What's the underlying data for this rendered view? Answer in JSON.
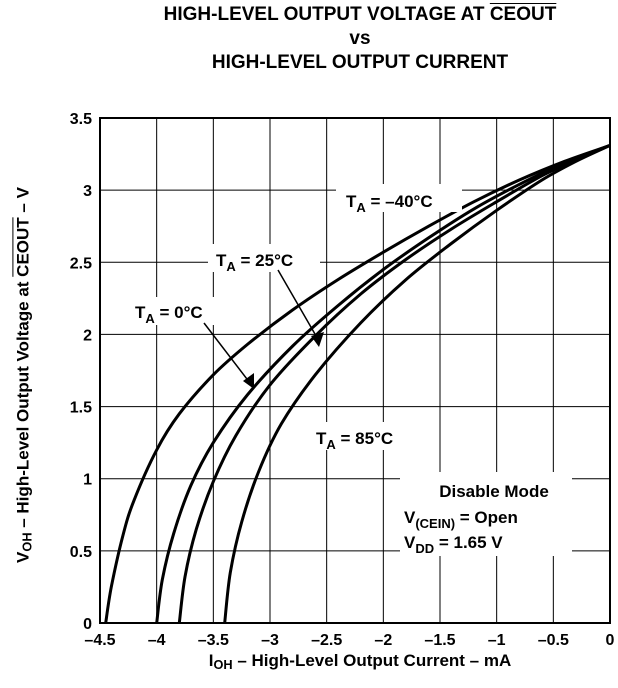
{
  "title": {
    "line1_prefix": "HIGH-LEVEL OUTPUT VOLTAGE AT ",
    "line1_overline": "CEOUT",
    "line2": "vs",
    "line3": "HIGH-LEVEL OUTPUT CURRENT"
  },
  "axis_labels": {
    "x_prefix": "I",
    "x_sub": "OH",
    "x_rest": " – High-Level Output Current – mA",
    "y_prefix": "V",
    "y_sub": "OH",
    "y_mid": " – High-Level Output Voltage at ",
    "y_overline": "CEOUT",
    "y_rest": " – V"
  },
  "series_labels": {
    "neg40": {
      "main": "T",
      "sub": "A",
      "rest": " = –40°C"
    },
    "t25": {
      "main": "T",
      "sub": "A",
      "rest": " = 25°C"
    },
    "t0": {
      "main": "T",
      "sub": "A",
      "rest": " = 0°C"
    },
    "t85": {
      "main": "T",
      "sub": "A",
      "rest": " = 85°C"
    }
  },
  "annotation": {
    "line1": "Disable Mode",
    "line2_main": "V",
    "line2_sub": "(CEIN)",
    "line2_rest": " = Open",
    "line3_main": "V",
    "line3_sub": "DD",
    "line3_rest": " = 1.65 V"
  },
  "chart_data": {
    "type": "line",
    "xlim": [
      -4.5,
      0
    ],
    "ylim": [
      0,
      3.5
    ],
    "x_ticks": [
      -4.5,
      -4,
      -3.5,
      -3,
      -2.5,
      -2,
      -1.5,
      -1,
      -0.5,
      0
    ],
    "x_tick_labels": [
      "–4.5",
      "–4",
      "–3.5",
      "–3",
      "–2.5",
      "–2",
      "–1.5",
      "–1",
      "–0.5",
      "0"
    ],
    "y_ticks": [
      0,
      0.5,
      1,
      1.5,
      2,
      2.5,
      3,
      3.5
    ],
    "y_tick_labels": [
      "0",
      "0.5",
      "1",
      "1.5",
      "2",
      "2.5",
      "3",
      "3.5"
    ],
    "grid": true,
    "series": [
      {
        "name": "TA = –40°C",
        "x": [
          -4.45,
          -4.4,
          -4.3,
          -4.2,
          -4.0,
          -3.8,
          -3.5,
          -3.2,
          -2.8,
          -2.4,
          -2.0,
          -1.6,
          -1.2,
          -0.8,
          -0.4,
          0
        ],
        "y": [
          0,
          0.25,
          0.6,
          0.85,
          1.2,
          1.45,
          1.72,
          1.93,
          2.17,
          2.38,
          2.57,
          2.75,
          2.92,
          3.07,
          3.2,
          3.31
        ]
      },
      {
        "name": "TA = 0°C",
        "x": [
          -4.0,
          -3.95,
          -3.85,
          -3.7,
          -3.5,
          -3.2,
          -2.8,
          -2.4,
          -2.0,
          -1.6,
          -1.2,
          -0.8,
          -0.4,
          0
        ],
        "y": [
          0,
          0.3,
          0.62,
          0.95,
          1.25,
          1.58,
          1.92,
          2.2,
          2.45,
          2.67,
          2.87,
          3.04,
          3.19,
          3.31
        ]
      },
      {
        "name": "TA = 25°C",
        "x": [
          -3.8,
          -3.75,
          -3.65,
          -3.5,
          -3.3,
          -3.0,
          -2.6,
          -2.2,
          -1.8,
          -1.4,
          -1.0,
          -0.6,
          -0.3,
          0
        ],
        "y": [
          0,
          0.32,
          0.65,
          0.98,
          1.3,
          1.65,
          1.99,
          2.28,
          2.52,
          2.73,
          2.92,
          3.1,
          3.21,
          3.31
        ]
      },
      {
        "name": "TA = 85°C",
        "x": [
          -3.4,
          -3.35,
          -3.25,
          -3.1,
          -2.9,
          -2.6,
          -2.2,
          -1.8,
          -1.4,
          -1.0,
          -0.6,
          -0.3,
          0
        ],
        "y": [
          0,
          0.35,
          0.7,
          1.05,
          1.38,
          1.72,
          2.08,
          2.38,
          2.63,
          2.86,
          3.07,
          3.2,
          3.31
        ]
      }
    ]
  }
}
